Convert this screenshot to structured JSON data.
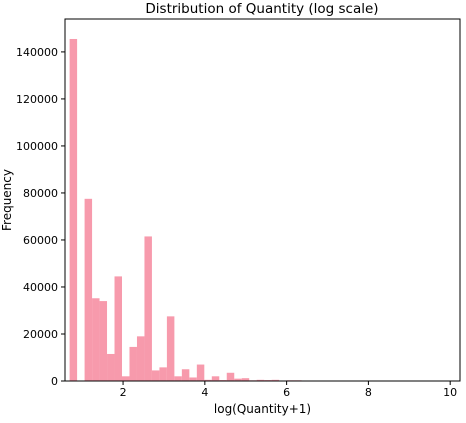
{
  "chart_data": {
    "type": "bar",
    "title": "Distribution of Quantity (log scale)",
    "xlabel": "log(Quantity+1)",
    "ylabel": "Frequency",
    "xlim": [
      0.58,
      10.24
    ],
    "ylim": [
      0,
      154000
    ],
    "xticks": [
      2,
      4,
      6,
      8,
      10
    ],
    "yticks": [
      0,
      20000,
      40000,
      60000,
      80000,
      100000,
      120000,
      140000
    ],
    "grid": false,
    "bar_color": "#f79aac",
    "bin_edges": [
      0.693,
      0.876,
      1.059,
      1.242,
      1.425,
      1.608,
      1.791,
      1.974,
      2.157,
      2.34,
      2.523,
      2.706,
      2.889,
      3.072,
      3.255,
      3.438,
      3.621,
      3.804,
      3.987,
      4.17,
      4.353,
      4.536,
      4.719,
      4.902,
      5.085,
      5.268,
      5.451,
      5.634,
      5.817,
      6.0,
      6.183,
      6.366,
      6.549,
      6.732,
      6.915,
      7.098,
      7.281,
      7.464,
      7.647,
      7.83,
      8.013,
      8.196,
      8.379,
      8.562,
      8.745,
      8.928,
      9.111,
      9.294,
      9.477,
      9.66,
      9.843
    ],
    "values": [
      145500,
      0,
      77500,
      35200,
      34000,
      11500,
      44500,
      2000,
      14500,
      19000,
      61500,
      4500,
      5800,
      27500,
      2000,
      5000,
      1500,
      7000,
      500,
      2000,
      400,
      3500,
      1000,
      1200,
      300,
      500,
      400,
      500,
      200,
      300,
      300,
      200,
      200,
      100,
      100,
      50,
      50,
      50,
      50,
      30,
      20,
      20,
      20,
      20,
      20,
      10,
      10,
      10,
      10,
      10
    ]
  }
}
